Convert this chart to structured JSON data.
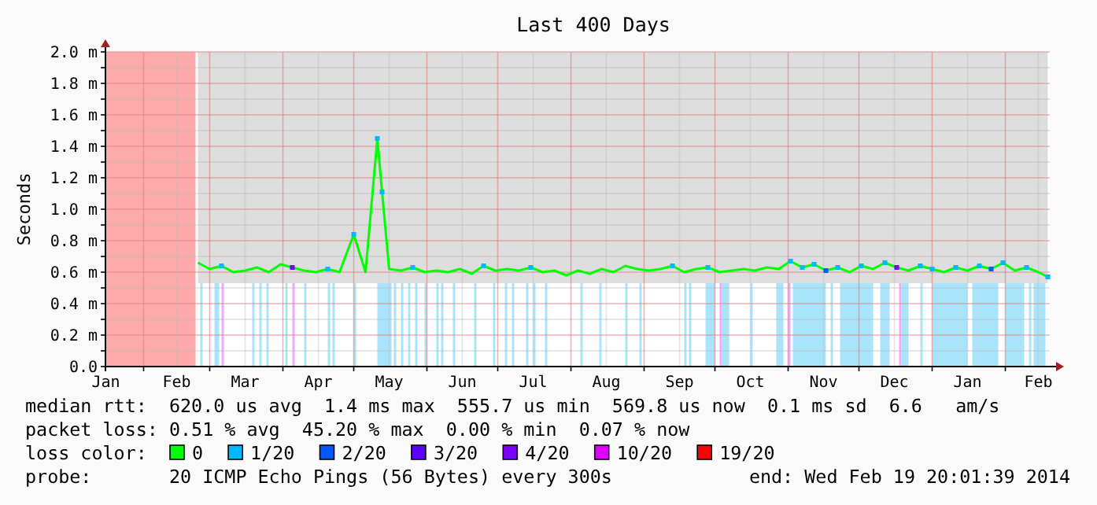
{
  "chart_data": {
    "type": "line",
    "title": "Last 400 Days",
    "ylabel": "Seconds",
    "xlim": [
      "2013-01-15T20:00",
      "2014-02-19T20:00"
    ],
    "xticks": [
      {
        "value": "2013-01-16",
        "label": "Jan"
      },
      {
        "value": "2013-02-01",
        "label": null
      },
      {
        "value": "2013-02-15",
        "label": "Feb"
      },
      {
        "value": "2013-03-01",
        "label": null
      },
      {
        "value": "2013-03-16",
        "label": "Mar"
      },
      {
        "value": "2013-04-01",
        "label": null
      },
      {
        "value": "2013-04-16",
        "label": "Apr"
      },
      {
        "value": "2013-05-01",
        "label": null
      },
      {
        "value": "2013-05-16",
        "label": "May"
      },
      {
        "value": "2013-06-01",
        "label": null
      },
      {
        "value": "2013-06-16",
        "label": "Jun"
      },
      {
        "value": "2013-07-01",
        "label": null
      },
      {
        "value": "2013-07-16",
        "label": "Jul"
      },
      {
        "value": "2013-08-01",
        "label": null
      },
      {
        "value": "2013-08-16",
        "label": "Aug"
      },
      {
        "value": "2013-09-01",
        "label": null
      },
      {
        "value": "2013-09-16",
        "label": "Sep"
      },
      {
        "value": "2013-10-01",
        "label": null
      },
      {
        "value": "2013-10-16",
        "label": "Oct"
      },
      {
        "value": "2013-11-01",
        "label": null
      },
      {
        "value": "2013-11-16",
        "label": "Nov"
      },
      {
        "value": "2013-12-01",
        "label": null
      },
      {
        "value": "2013-12-16",
        "label": "Dec"
      },
      {
        "value": "2014-01-01",
        "label": null
      },
      {
        "value": "2014-01-16",
        "label": "Jan"
      },
      {
        "value": "2014-02-01",
        "label": null
      },
      {
        "value": "2014-02-15",
        "label": "Feb"
      }
    ],
    "ylim": [
      0,
      2.0
    ],
    "yticks": [
      {
        "value": 0,
        "label": "0.0"
      },
      {
        "value": 0.1,
        "label": null
      },
      {
        "value": 0.2,
        "label": "0.2 m"
      },
      {
        "value": 0.3,
        "label": null
      },
      {
        "value": 0.4,
        "label": "0.4 m"
      },
      {
        "value": 0.5,
        "label": null
      },
      {
        "value": 0.6,
        "label": "0.6 m"
      },
      {
        "value": 0.7,
        "label": null
      },
      {
        "value": 0.8,
        "label": "0.8 m"
      },
      {
        "value": 0.9,
        "label": null
      },
      {
        "value": 1.0,
        "label": "1.0 m"
      },
      {
        "value": 1.1,
        "label": null
      },
      {
        "value": 1.2,
        "label": "1.2 m"
      },
      {
        "value": 1.3,
        "label": null
      },
      {
        "value": 1.4,
        "label": "1.4 m"
      },
      {
        "value": 1.5,
        "label": null
      },
      {
        "value": 1.6,
        "label": "1.6 m"
      },
      {
        "value": 1.7,
        "label": null
      },
      {
        "value": 1.8,
        "label": "1.8 m"
      },
      {
        "value": 1.9,
        "label": null
      },
      {
        "value": 2.0,
        "label": "2.0 m"
      }
    ],
    "grid": true,
    "legend": "bottom",
    "series": [
      {
        "name": "0",
        "color": "#00ff00",
        "marker": "none",
        "line_style": "solid",
        "x": [
          "2013-02-24",
          "2013-03-01",
          "2013-03-06",
          "2013-03-11",
          "2013-03-16",
          "2013-03-21",
          "2013-03-26",
          "2013-03-31",
          "2013-04-05",
          "2013-04-10",
          "2013-04-15",
          "2013-04-20",
          "2013-04-25",
          "2013-05-01",
          "2013-05-06",
          "2013-05-11",
          "2013-05-13",
          "2013-05-16",
          "2013-05-21",
          "2013-05-26",
          "2013-05-31",
          "2013-06-05",
          "2013-06-10",
          "2013-06-15",
          "2013-06-20",
          "2013-06-25",
          "2013-06-30",
          "2013-07-05",
          "2013-07-10",
          "2013-07-15",
          "2013-07-20",
          "2013-07-25",
          "2013-07-30",
          "2013-08-04",
          "2013-08-09",
          "2013-08-14",
          "2013-08-19",
          "2013-08-24",
          "2013-08-29",
          "2013-09-03",
          "2013-09-08",
          "2013-09-13",
          "2013-09-18",
          "2013-09-23",
          "2013-09-28",
          "2013-10-03",
          "2013-10-08",
          "2013-10-13",
          "2013-10-18",
          "2013-10-23",
          "2013-10-28",
          "2013-11-02",
          "2013-11-07",
          "2013-11-12",
          "2013-11-17",
          "2013-11-22",
          "2013-11-27",
          "2013-12-02",
          "2013-12-07",
          "2013-12-12",
          "2013-12-17",
          "2013-12-22",
          "2013-12-27",
          "2014-01-01",
          "2014-01-06",
          "2014-01-11",
          "2014-01-16",
          "2014-01-21",
          "2014-01-26",
          "2014-01-31",
          "2014-02-05",
          "2014-02-10",
          "2014-02-15",
          "2014-02-19"
        ],
        "values": [
          0.66,
          0.62,
          0.64,
          0.6,
          0.61,
          0.63,
          0.6,
          0.65,
          0.63,
          0.61,
          0.6,
          0.62,
          0.6,
          0.84,
          0.6,
          1.45,
          1.11,
          0.62,
          0.61,
          0.63,
          0.6,
          0.61,
          0.6,
          0.62,
          0.59,
          0.64,
          0.61,
          0.62,
          0.61,
          0.63,
          0.6,
          0.61,
          0.58,
          0.61,
          0.59,
          0.62,
          0.6,
          0.64,
          0.62,
          0.61,
          0.62,
          0.64,
          0.6,
          0.62,
          0.63,
          0.6,
          0.61,
          0.62,
          0.61,
          0.63,
          0.62,
          0.67,
          0.63,
          0.65,
          0.61,
          0.63,
          0.6,
          0.64,
          0.62,
          0.66,
          0.63,
          0.61,
          0.64,
          0.62,
          0.6,
          0.63,
          0.61,
          0.64,
          0.62,
          0.66,
          0.61,
          0.63,
          0.6,
          0.57
        ],
        "lower": [
          0.53,
          0.53,
          0.53,
          0.53,
          0.53,
          0.53,
          0.53,
          0.53,
          0.53,
          0.53,
          0.53,
          0.53,
          0.53,
          0.53,
          0.53,
          0.53,
          0.53,
          0.53,
          0.53,
          0.53,
          0.53,
          0.53,
          0.53,
          0.53,
          0.53,
          0.53,
          0.53,
          0.53,
          0.53,
          0.53,
          0.53,
          0.53,
          0.53,
          0.53,
          0.53,
          0.53,
          0.53,
          0.53,
          0.53,
          0.53,
          0.53,
          0.53,
          0.53,
          0.53,
          0.53,
          0.53,
          0.53,
          0.53,
          0.53,
          0.53,
          0.53,
          0.53,
          0.53,
          0.53,
          0.53,
          0.53,
          0.53,
          0.53,
          0.53,
          0.53,
          0.53,
          0.53,
          0.53,
          0.53,
          0.53,
          0.53,
          0.53,
          0.53,
          0.53,
          0.53,
          0.53,
          0.53,
          0.53,
          0.53
        ],
        "upper": [
          2.0,
          2.0,
          2.0,
          2.0,
          2.0,
          2.0,
          2.0,
          2.0,
          2.0,
          2.0,
          2.0,
          2.0,
          2.0,
          2.0,
          2.0,
          2.0,
          2.0,
          2.0,
          2.0,
          2.0,
          2.0,
          2.0,
          2.0,
          2.0,
          2.0,
          2.0,
          2.0,
          2.0,
          2.0,
          2.0,
          2.0,
          2.0,
          2.0,
          2.0,
          2.0,
          2.0,
          2.0,
          2.0,
          2.0,
          2.0,
          2.0,
          2.0,
          2.0,
          2.0,
          2.0,
          2.0,
          2.0,
          2.0,
          2.0,
          2.0,
          2.0,
          2.0,
          2.0,
          2.0,
          2.0,
          2.0,
          2.0,
          2.0,
          2.0,
          2.0,
          2.0,
          2.0,
          2.0,
          2.0,
          2.0,
          2.0,
          2.0,
          2.0,
          2.0,
          2.0,
          2.0,
          2.0,
          2.0,
          2.0
        ]
      },
      {
        "name": "1/20",
        "type": "scatter",
        "color": "#00b8ff",
        "marker": "square",
        "x": [
          "2013-03-06",
          "2013-04-20",
          "2013-05-01",
          "2013-05-11",
          "2013-05-13",
          "2013-05-26",
          "2013-06-25",
          "2013-07-15",
          "2013-09-13",
          "2013-09-28",
          "2013-11-02",
          "2013-11-07",
          "2013-11-12",
          "2013-11-22",
          "2013-12-02",
          "2013-12-12",
          "2013-12-27",
          "2014-01-01",
          "2014-01-11",
          "2014-01-21",
          "2014-01-31",
          "2014-02-10",
          "2014-02-19"
        ],
        "values": [
          0.64,
          0.62,
          0.84,
          1.45,
          1.11,
          0.63,
          0.64,
          0.63,
          0.64,
          0.63,
          0.67,
          0.63,
          0.65,
          0.63,
          0.64,
          0.66,
          0.64,
          0.62,
          0.63,
          0.64,
          0.66,
          0.63,
          0.57
        ]
      },
      {
        "name": "2/20",
        "type": "scatter",
        "color": "#0059ff",
        "marker": "square",
        "x": [
          "2013-11-17",
          "2014-01-26"
        ],
        "values": [
          0.61,
          0.62
        ]
      },
      {
        "name": "3/20",
        "type": "scatter",
        "color": "#5e00ff"
      },
      {
        "name": "4/20",
        "type": "scatter",
        "color": "#7e00ff",
        "marker": "square",
        "x": [
          "2013-04-05",
          "2013-12-17"
        ],
        "values": [
          0.63,
          0.63
        ]
      },
      {
        "name": "10/20",
        "type": "scatter",
        "color": "#dd00ff"
      },
      {
        "name": "19/20",
        "type": "scatter",
        "color": "#ff0000"
      }
    ],
    "bands": [
      {
        "axis": "x",
        "from": "2013-01-15T20:00",
        "to": "2013-02-23",
        "color": "#ffaaaa"
      },
      {
        "axis": "x",
        "from": "2013-02-25",
        "to": "2013-02-26",
        "color": "#aae4fa"
      },
      {
        "axis": "x",
        "from": "2013-03-03",
        "to": "2013-03-05",
        "color": "#aae4fa"
      },
      {
        "axis": "x",
        "from": "2013-03-06",
        "to": "2013-03-07",
        "color": "#eeaaff"
      },
      {
        "axis": "x",
        "from": "2013-03-19",
        "to": "2013-03-20",
        "color": "#aae4fa"
      },
      {
        "axis": "x",
        "from": "2013-03-22",
        "to": "2013-03-23",
        "color": "#aae4fa"
      },
      {
        "axis": "x",
        "from": "2013-03-25",
        "to": "2013-03-26",
        "color": "#aae4fa"
      },
      {
        "axis": "x",
        "from": "2013-04-02",
        "to": "2013-04-03",
        "color": "#aae4fa"
      },
      {
        "axis": "x",
        "from": "2013-04-05",
        "to": "2013-04-06",
        "color": "#eeaaff"
      },
      {
        "axis": "x",
        "from": "2013-04-10",
        "to": "2013-04-11",
        "color": "#aae4fa"
      },
      {
        "axis": "x",
        "from": "2013-04-20",
        "to": "2013-04-21",
        "color": "#aae4fa"
      },
      {
        "axis": "x",
        "from": "2013-04-22",
        "to": "2013-04-23",
        "color": "#aae4fa"
      },
      {
        "axis": "x",
        "from": "2013-05-01",
        "to": "2013-05-02",
        "color": "#aae4fa"
      },
      {
        "axis": "x",
        "from": "2013-05-11",
        "to": "2013-05-17",
        "color": "#aae4fa"
      },
      {
        "axis": "x",
        "from": "2013-05-18",
        "to": "2013-05-19",
        "color": "#aae4fa"
      },
      {
        "axis": "x",
        "from": "2013-05-21",
        "to": "2013-05-22",
        "color": "#aae4fa"
      },
      {
        "axis": "x",
        "from": "2013-05-24",
        "to": "2013-05-25",
        "color": "#aae4fa"
      },
      {
        "axis": "x",
        "from": "2013-05-27",
        "to": "2013-05-28",
        "color": "#aae4fa"
      },
      {
        "axis": "x",
        "from": "2013-05-31",
        "to": "2013-06-01",
        "color": "#aae4fa"
      },
      {
        "axis": "x",
        "from": "2013-06-05",
        "to": "2013-06-06",
        "color": "#aae4fa"
      },
      {
        "axis": "x",
        "from": "2013-06-07",
        "to": "2013-06-08",
        "color": "#aae4fa"
      },
      {
        "axis": "x",
        "from": "2013-06-12",
        "to": "2013-06-13",
        "color": "#aae4fa"
      },
      {
        "axis": "x",
        "from": "2013-06-21",
        "to": "2013-06-22",
        "color": "#aae4fa"
      },
      {
        "axis": "x",
        "from": "2013-06-29",
        "to": "2013-06-30",
        "color": "#aae4fa"
      },
      {
        "axis": "x",
        "from": "2013-07-04",
        "to": "2013-07-05",
        "color": "#aae4fa"
      },
      {
        "axis": "x",
        "from": "2013-07-07",
        "to": "2013-07-08",
        "color": "#aae4fa"
      },
      {
        "axis": "x",
        "from": "2013-07-13",
        "to": "2013-07-14",
        "color": "#aae4fa"
      },
      {
        "axis": "x",
        "from": "2013-07-16",
        "to": "2013-07-17",
        "color": "#aae4fa"
      },
      {
        "axis": "x",
        "from": "2013-07-21",
        "to": "2013-07-22",
        "color": "#aae4fa"
      },
      {
        "axis": "x",
        "from": "2013-08-05",
        "to": "2013-08-06",
        "color": "#aae4fa"
      },
      {
        "axis": "x",
        "from": "2013-08-13",
        "to": "2013-08-14",
        "color": "#aae4fa"
      },
      {
        "axis": "x",
        "from": "2013-08-24",
        "to": "2013-08-25",
        "color": "#aae4fa"
      },
      {
        "axis": "x",
        "from": "2013-08-30",
        "to": "2013-08-31",
        "color": "#aae4fa"
      },
      {
        "axis": "x",
        "from": "2013-09-18",
        "to": "2013-09-19",
        "color": "#aae4fa"
      },
      {
        "axis": "x",
        "from": "2013-09-20",
        "to": "2013-09-21",
        "color": "#aae4fa"
      },
      {
        "axis": "x",
        "from": "2013-09-27",
        "to": "2013-10-01",
        "color": "#aae4fa"
      },
      {
        "axis": "x",
        "from": "2013-10-03",
        "to": "2013-10-04",
        "color": "#eeaaff"
      },
      {
        "axis": "x",
        "from": "2013-10-04",
        "to": "2013-10-07",
        "color": "#aae4fa"
      },
      {
        "axis": "x",
        "from": "2013-10-16",
        "to": "2013-10-17",
        "color": "#aae4fa"
      },
      {
        "axis": "x",
        "from": "2013-10-27",
        "to": "2013-10-30",
        "color": "#aae4fa"
      },
      {
        "axis": "x",
        "from": "2013-11-01",
        "to": "2013-11-02",
        "color": "#eeaaff"
      },
      {
        "axis": "x",
        "from": "2013-11-03",
        "to": "2013-11-17",
        "color": "#aae4fa"
      },
      {
        "axis": "x",
        "from": "2013-11-19",
        "to": "2013-11-20",
        "color": "#aae4fa"
      },
      {
        "axis": "x",
        "from": "2013-11-23",
        "to": "2013-12-07",
        "color": "#aae4fa"
      },
      {
        "axis": "x",
        "from": "2013-12-10",
        "to": "2013-12-14",
        "color": "#aae4fa"
      },
      {
        "axis": "x",
        "from": "2013-12-18",
        "to": "2013-12-19",
        "color": "#eeaaff"
      },
      {
        "axis": "x",
        "from": "2013-12-19",
        "to": "2013-12-22",
        "color": "#aae4fa"
      },
      {
        "axis": "x",
        "from": "2013-12-27",
        "to": "2013-12-28",
        "color": "#aae4fa"
      },
      {
        "axis": "x",
        "from": "2014-01-01",
        "to": "2014-01-16",
        "color": "#aae4fa"
      },
      {
        "axis": "x",
        "from": "2014-01-18",
        "to": "2014-01-29",
        "color": "#aae4fa"
      },
      {
        "axis": "x",
        "from": "2014-02-01",
        "to": "2014-02-09",
        "color": "#aae4fa"
      },
      {
        "axis": "x",
        "from": "2014-02-11",
        "to": "2014-02-12",
        "color": "#aae4fa"
      },
      {
        "axis": "x",
        "from": "2014-02-13",
        "to": "2014-02-18",
        "color": "#aae4fa"
      }
    ],
    "annotations": [
      "median rtt:  620.0 us avg  1.4 ms max  555.7 us min  569.8 us now  0.1 ms sd  6.6   am/s",
      "packet loss: 0.51 % avg  45.20 % max  0.00 % min  0.07 % now",
      "loss color:",
      "probe:       20 ICMP Echo Pings (56 Bytes) every 300s",
      "end: Wed Feb 19 20:01:39 2014"
    ]
  }
}
